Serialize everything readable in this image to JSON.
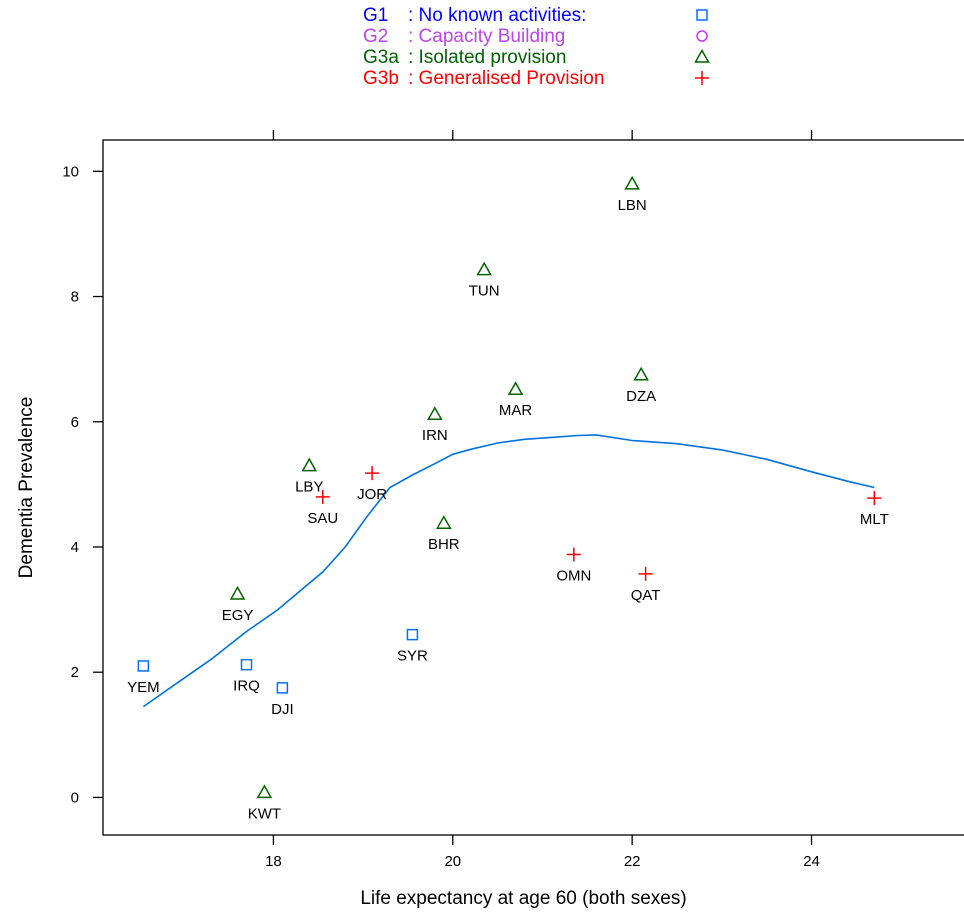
{
  "chart_data": {
    "type": "scatter",
    "xlabel": "Life expectancy at age 60 (both sexes)",
    "ylabel": "Dementia Prevalence",
    "xlim": [
      16.1,
      25.7
    ],
    "ylim": [
      -0.6,
      10.5
    ],
    "xticks": [
      18,
      20,
      22,
      24
    ],
    "yticks": [
      0,
      2,
      4,
      6,
      8,
      10
    ],
    "grid": false,
    "legend_position": "top-center",
    "groups": [
      {
        "key": "G1",
        "code": "G1",
        "sep": " : ",
        "desc": "No known activities:",
        "marker": "square",
        "color": "#0072ff"
      },
      {
        "key": "G2",
        "code": "G2",
        "sep": " : ",
        "desc": "Capacity Building",
        "marker": "circle",
        "color": "#cc33ff"
      },
      {
        "key": "G3a",
        "code": "G3a",
        "sep": " : ",
        "desc": "Isolated provision",
        "marker": "triangle",
        "color": "#006400"
      },
      {
        "key": "G3b",
        "code": "G3b",
        "sep": " : ",
        "desc": "Generalised Provision",
        "marker": "plus",
        "color": "#ff0000"
      }
    ],
    "legend_text_colors": {
      "G1": "#0000ff",
      "G2": "#bb44ee",
      "G3a": "#006400",
      "G3b": "#ff0000"
    },
    "points": [
      {
        "label": "YEM",
        "group": "G1",
        "x": 16.55,
        "y": 2.1
      },
      {
        "label": "IRQ",
        "group": "G1",
        "x": 17.7,
        "y": 2.12
      },
      {
        "label": "DJI",
        "group": "G1",
        "x": 18.1,
        "y": 1.75
      },
      {
        "label": "SYR",
        "group": "G1",
        "x": 19.55,
        "y": 2.6
      },
      {
        "label": "EGY",
        "group": "G3a",
        "x": 17.6,
        "y": 3.25
      },
      {
        "label": "KWT",
        "group": "G3a",
        "x": 17.9,
        "y": 0.08
      },
      {
        "label": "LBY",
        "group": "G3a",
        "x": 18.4,
        "y": 5.3
      },
      {
        "label": "IRN",
        "group": "G3a",
        "x": 19.8,
        "y": 6.12
      },
      {
        "label": "BHR",
        "group": "G3a",
        "x": 19.9,
        "y": 4.38
      },
      {
        "label": "TUN",
        "group": "G3a",
        "x": 20.35,
        "y": 8.43
      },
      {
        "label": "MAR",
        "group": "G3a",
        "x": 20.7,
        "y": 6.52
      },
      {
        "label": "LBN",
        "group": "G3a",
        "x": 22.0,
        "y": 9.8
      },
      {
        "label": "DZA",
        "group": "G3a",
        "x": 22.1,
        "y": 6.75
      },
      {
        "label": "SAU",
        "group": "G3b",
        "x": 18.55,
        "y": 4.8
      },
      {
        "label": "JOR",
        "group": "G3b",
        "x": 19.1,
        "y": 5.18
      },
      {
        "label": "OMN",
        "group": "G3b",
        "x": 21.35,
        "y": 3.88
      },
      {
        "label": "QAT",
        "group": "G3b",
        "x": 22.15,
        "y": 3.57
      },
      {
        "label": "MLT",
        "group": "G3b",
        "x": 24.7,
        "y": 4.78
      }
    ],
    "smooth_line": {
      "color": "#0072dd",
      "x": [
        16.55,
        16.9,
        17.3,
        17.7,
        18.05,
        18.3,
        18.55,
        18.8,
        19.05,
        19.3,
        19.55,
        19.8,
        20.0,
        20.2,
        20.5,
        20.8,
        21.1,
        21.4,
        21.6,
        22.0,
        22.5,
        23.0,
        23.5,
        24.0,
        24.4,
        24.7
      ],
      "y": [
        1.45,
        1.8,
        2.2,
        2.65,
        3.0,
        3.3,
        3.6,
        4.0,
        4.5,
        4.95,
        5.15,
        5.33,
        5.48,
        5.56,
        5.66,
        5.72,
        5.75,
        5.78,
        5.79,
        5.7,
        5.65,
        5.55,
        5.4,
        5.2,
        5.05,
        4.95
      ]
    }
  }
}
